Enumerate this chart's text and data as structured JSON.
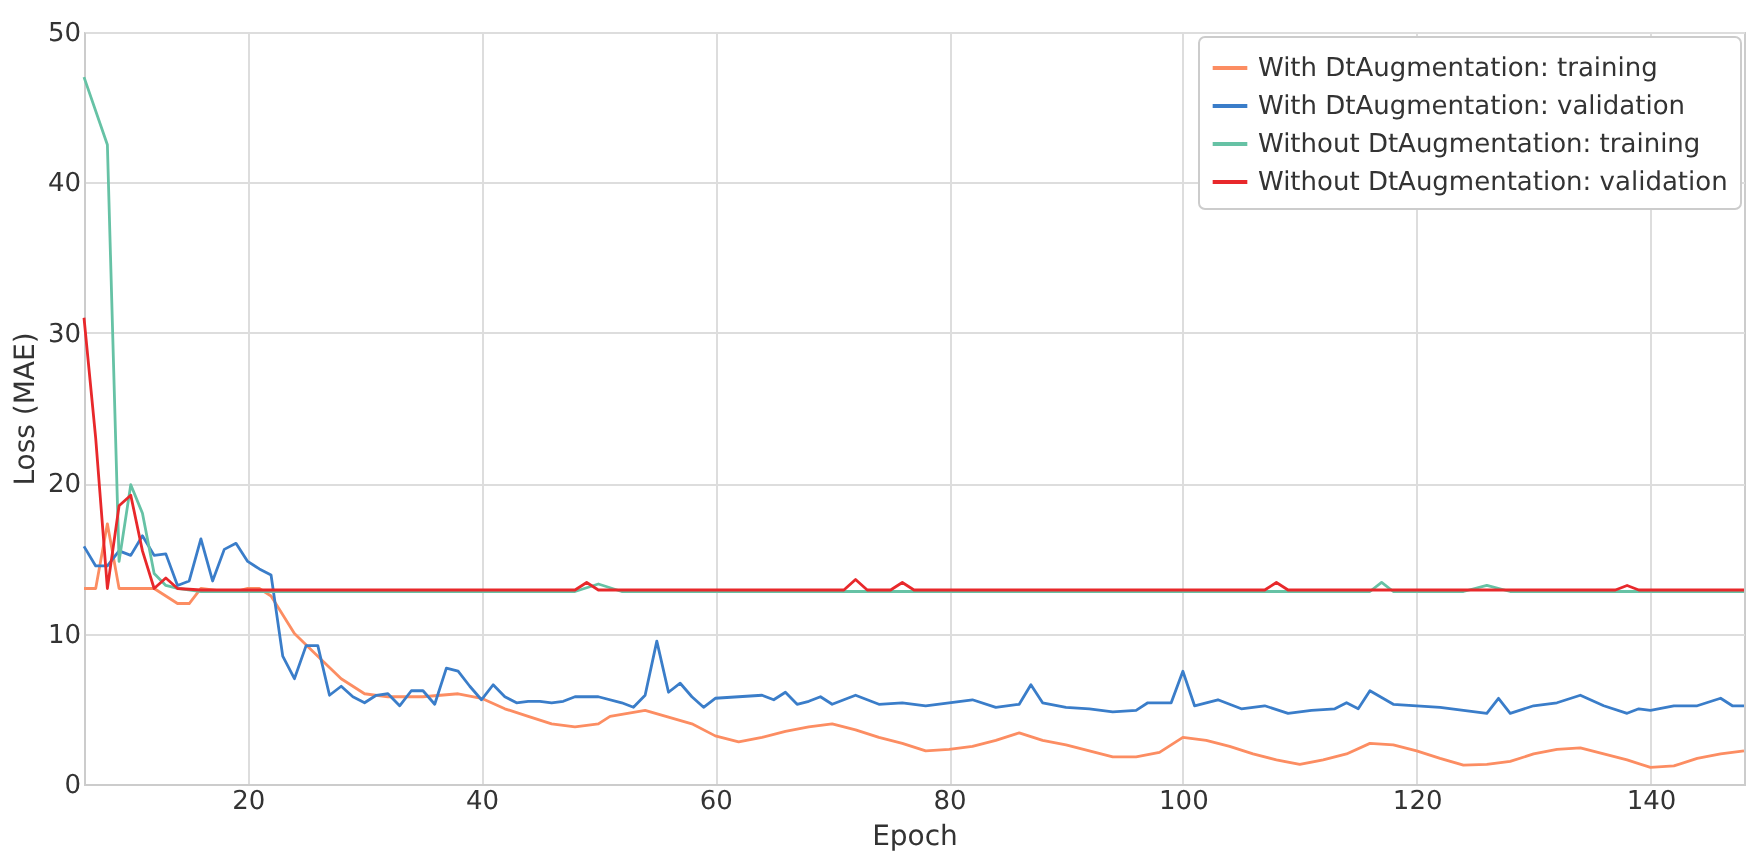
{
  "chart_data": {
    "type": "line",
    "xlabel": "Epoch",
    "ylabel": "Loss (MAE)",
    "xlim": [
      6,
      148
    ],
    "ylim": [
      0,
      50
    ],
    "xticks": [
      20,
      40,
      60,
      80,
      100,
      120,
      140
    ],
    "yticks": [
      0,
      10,
      20,
      30,
      40,
      50
    ],
    "grid": true,
    "legend": "top right",
    "line_style": "solid",
    "marker": "none",
    "series": [
      {
        "name": "With DtAugmentation: training",
        "color": "#fc8d62",
        "x": [
          6,
          7,
          8,
          9,
          10,
          12,
          14,
          15,
          16,
          18,
          19,
          20,
          21,
          22,
          24,
          26,
          28,
          30,
          32,
          35,
          38,
          40,
          42,
          44,
          46,
          48,
          50,
          51,
          54,
          58,
          60,
          62,
          64,
          66,
          68,
          70,
          72,
          74,
          76,
          78,
          80,
          82,
          84,
          86,
          88,
          90,
          92,
          94,
          96,
          98,
          100,
          102,
          104,
          106,
          108,
          110,
          112,
          114,
          116,
          118,
          120,
          122,
          124,
          126,
          128,
          130,
          132,
          134,
          136,
          138,
          140,
          142,
          144,
          146,
          148
        ],
        "values": [
          13,
          13,
          17.3,
          13,
          13,
          13,
          12,
          12,
          13,
          12.8,
          12.8,
          13,
          13,
          12.5,
          10,
          8.5,
          7,
          6,
          5.8,
          5.8,
          6,
          5.7,
          5,
          4.5,
          4,
          3.8,
          4,
          4.5,
          4.9,
          4,
          3.2,
          2.8,
          3.1,
          3.5,
          3.8,
          4,
          3.6,
          3.1,
          2.7,
          2.2,
          2.3,
          2.5,
          2.9,
          3.4,
          2.9,
          2.6,
          2.2,
          1.8,
          1.8,
          2.1,
          3.1,
          2.9,
          2.5,
          2.0,
          1.6,
          1.3,
          1.6,
          2.0,
          2.7,
          2.6,
          2.2,
          1.7,
          1.25,
          1.3,
          1.5,
          2.0,
          2.3,
          2.4,
          2.0,
          1.6,
          1.1,
          1.2,
          1.7,
          2.0,
          2.2
        ]
      },
      {
        "name": "With DtAugmentation: validation",
        "color": "#3a7dc9",
        "x": [
          6,
          7,
          8,
          9,
          10,
          11,
          12,
          13,
          14,
          15,
          16,
          17,
          18,
          19,
          20,
          21,
          22,
          23,
          24,
          25,
          26,
          27,
          28,
          29,
          30,
          31,
          32,
          33,
          34,
          35,
          36,
          37,
          38,
          39,
          40,
          41,
          42,
          43,
          44,
          45,
          46,
          47,
          48,
          50,
          52,
          53,
          54,
          55,
          56,
          57,
          58,
          59,
          60,
          62,
          64,
          65,
          66,
          67,
          68,
          69,
          70,
          72,
          74,
          76,
          78,
          80,
          82,
          84,
          86,
          87,
          88,
          90,
          92,
          94,
          96,
          97,
          99,
          100,
          101,
          103,
          105,
          107,
          109,
          111,
          113,
          114,
          115,
          116,
          118,
          120,
          122,
          124,
          126,
          127,
          128,
          130,
          132,
          134,
          136,
          138,
          139,
          140,
          142,
          144,
          146,
          147,
          148
        ],
        "values": [
          15.8,
          14.5,
          14.5,
          15.5,
          15.2,
          16.5,
          15.2,
          15.3,
          13.2,
          13.5,
          16.3,
          13.5,
          15.6,
          16,
          14.8,
          14.3,
          13.9,
          8.5,
          7,
          9.2,
          9.2,
          5.9,
          6.5,
          5.8,
          5.4,
          5.9,
          6,
          5.2,
          6.2,
          6.2,
          5.3,
          7.7,
          7.5,
          6.5,
          5.6,
          6.6,
          5.8,
          5.4,
          5.5,
          5.5,
          5.4,
          5.5,
          5.8,
          5.8,
          5.4,
          5.1,
          5.9,
          9.5,
          6.1,
          6.7,
          5.8,
          5.1,
          5.7,
          5.8,
          5.9,
          5.6,
          6.1,
          5.3,
          5.5,
          5.8,
          5.3,
          5.9,
          5.3,
          5.4,
          5.2,
          5.4,
          5.6,
          5.1,
          5.3,
          6.6,
          5.4,
          5.1,
          5,
          4.8,
          4.9,
          5.4,
          5.4,
          7.5,
          5.2,
          5.6,
          5.0,
          5.2,
          4.7,
          4.9,
          5.0,
          5.4,
          5.0,
          6.2,
          5.3,
          5.2,
          5.1,
          4.9,
          4.7,
          5.7,
          4.7,
          5.2,
          5.4,
          5.9,
          5.2,
          4.7,
          5.0,
          4.9,
          5.2,
          5.2,
          5.7,
          5.2,
          5.2
        ]
      },
      {
        "name": "Without DtAugmentation: training",
        "color": "#66c2a5",
        "x": [
          6,
          8,
          9,
          10,
          11,
          12,
          13,
          14,
          16,
          20,
          24,
          30,
          36,
          40,
          44,
          48,
          50,
          52,
          56,
          60,
          66,
          72,
          78,
          84,
          90,
          96,
          102,
          108,
          112,
          116,
          117,
          118,
          122,
          124,
          126,
          128,
          132,
          138,
          140,
          144,
          148
        ],
        "values": [
          47,
          42.5,
          14.8,
          19.9,
          18,
          14,
          13.2,
          13,
          12.8,
          12.8,
          12.8,
          12.8,
          12.8,
          12.8,
          12.8,
          12.8,
          13.3,
          12.8,
          12.8,
          12.8,
          12.8,
          12.8,
          12.8,
          12.8,
          12.8,
          12.8,
          12.8,
          12.8,
          12.8,
          12.8,
          13.4,
          12.8,
          12.8,
          12.8,
          13.2,
          12.8,
          12.8,
          12.8,
          12.8,
          12.8,
          12.8
        ]
      },
      {
        "name": "Without DtAugmentation: validation",
        "color": "#e8282b",
        "x": [
          6,
          7,
          8,
          9,
          10,
          11,
          12,
          13,
          14,
          16,
          20,
          24,
          30,
          36,
          40,
          44,
          48,
          49,
          50,
          56,
          60,
          66,
          71,
          72,
          73,
          75,
          76,
          77,
          82,
          88,
          94,
          100,
          106,
          107,
          108,
          109,
          114,
          120,
          130,
          137,
          138,
          139,
          144,
          148
        ],
        "values": [
          31,
          23,
          13,
          18.5,
          19.2,
          15.5,
          13,
          13.7,
          13,
          12.9,
          12.9,
          12.9,
          12.9,
          12.9,
          12.9,
          12.9,
          12.9,
          13.4,
          12.9,
          12.9,
          12.9,
          12.9,
          12.9,
          13.6,
          12.9,
          12.9,
          13.4,
          12.9,
          12.9,
          12.9,
          12.9,
          12.9,
          12.9,
          12.9,
          13.4,
          12.9,
          12.9,
          12.9,
          12.9,
          12.9,
          13.2,
          12.9,
          12.9,
          12.9
        ]
      }
    ]
  }
}
